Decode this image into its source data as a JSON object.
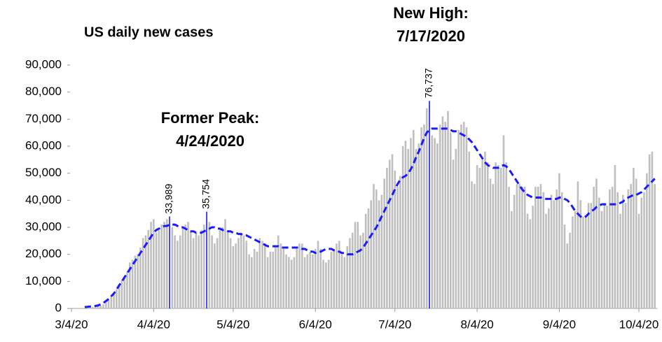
{
  "chart_data": {
    "type": "bar",
    "title": "US daily new cases",
    "annotations": [
      {
        "lines": [
          "Former Peak:",
          "4/24/2020"
        ],
        "color": "#1a1aff"
      },
      {
        "lines": [
          "New High:",
          "7/17/2020"
        ],
        "color": "#1a1aff"
      }
    ],
    "ylim": [
      0,
      90000
    ],
    "yticks": [
      0,
      {
        "value": 10000,
        "label": "10,000"
      },
      {
        "value": 20000,
        "label": "20,000"
      },
      {
        "value": 30000,
        "label": "30,000"
      },
      {
        "value": 40000,
        "label": "40,000"
      },
      {
        "value": 50000,
        "label": "50,000"
      },
      {
        "value": 60000,
        "label": "60,000"
      },
      {
        "value": 70000,
        "label": "70,000"
      },
      {
        "value": 80000,
        "label": "80,000"
      },
      {
        "value": 90000,
        "label": "90,000"
      }
    ],
    "categories": [
      "3/4/20",
      null,
      null,
      null,
      null,
      null,
      null,
      null,
      null,
      null,
      null,
      null,
      null,
      null,
      null,
      null,
      null,
      null,
      null,
      null,
      null,
      null,
      null,
      null,
      null,
      null,
      null,
      null,
      null,
      null,
      null,
      "4/4/20",
      null,
      null,
      null,
      null,
      null,
      null,
      null,
      null,
      null,
      null,
      null,
      null,
      null,
      null,
      null,
      null,
      null,
      null,
      null,
      null,
      null,
      null,
      null,
      null,
      null,
      null,
      null,
      null,
      null,
      "5/4/20",
      null,
      null,
      null,
      null,
      null,
      null,
      null,
      null,
      null,
      null,
      null,
      null,
      null,
      null,
      null,
      null,
      null,
      null,
      null,
      null,
      null,
      null,
      null,
      null,
      null,
      null,
      null,
      null,
      null,
      null,
      "6/4/20",
      null,
      null,
      null,
      null,
      null,
      null,
      null,
      null,
      null,
      null,
      null,
      null,
      null,
      null,
      null,
      null,
      null,
      null,
      null,
      null,
      null,
      null,
      null,
      null,
      null,
      null,
      null,
      null,
      null,
      "7/4/20",
      null,
      null,
      null,
      null,
      null,
      null,
      null,
      null,
      null,
      null,
      null,
      null,
      null,
      null,
      null,
      null,
      null,
      null,
      null,
      null,
      null,
      null,
      null,
      null,
      null,
      null,
      null,
      null,
      null,
      null,
      "8/4/20",
      null,
      null,
      null,
      null,
      null,
      null,
      null,
      null,
      null,
      null,
      null,
      null,
      null,
      null,
      null,
      null,
      null,
      null,
      null,
      null,
      null,
      null,
      null,
      null,
      null,
      null,
      null,
      null,
      null,
      null,
      "9/4/20",
      null,
      null,
      null,
      null,
      null,
      null,
      null,
      null,
      null,
      null,
      null,
      null,
      null,
      null,
      null,
      null,
      null,
      null,
      null,
      null,
      null,
      null,
      null,
      null,
      null,
      null,
      null,
      null,
      null,
      "10/4/20",
      null,
      null,
      null,
      null,
      null,
      null
    ],
    "series": [
      {
        "type": "bar",
        "color": "#bfbfbf",
        "label_color": "#1a1aff",
        "values": [
          40,
          60,
          90,
          150,
          120,
          200,
          290,
          380,
          520,
          660,
          760,
          1050,
          1530,
          2200,
          3200,
          4600,
          5600,
          7000,
          9000,
          10500,
          11500,
          13500,
          17000,
          18000,
          19500,
          20000,
          22500,
          26000,
          27000,
          29000,
          32000,
          33000,
          28000,
          29000,
          31000,
          32000,
          33000,
          33989,
          30000,
          27000,
          25000,
          27000,
          30000,
          31000,
          32000,
          29000,
          26000,
          28000,
          27000,
          29000,
          31000,
          35754,
          32000,
          27000,
          24000,
          26000,
          29000,
          30000,
          33000,
          29000,
          26000,
          23000,
          24000,
          26000,
          28000,
          27000,
          25000,
          20000,
          19000,
          22000,
          21000,
          26000,
          25000,
          24000,
          19000,
          21000,
          21000,
          23000,
          27000,
          24000,
          22000,
          20000,
          19000,
          18000,
          19000,
          22000,
          24000,
          24000,
          19000,
          20000,
          21000,
          20000,
          22000,
          25000,
          22000,
          18000,
          17000,
          18000,
          21000,
          22000,
          24000,
          25000,
          20000,
          19000,
          23000,
          26000,
          28000,
          32000,
          32000,
          27000,
          28000,
          35000,
          37000,
          40000,
          46000,
          44000,
          40000,
          42000,
          48000,
          52000,
          55000,
          57000,
          51000,
          45000,
          49000,
          60000,
          62000,
          59000,
          63000,
          66000,
          59000,
          61000,
          67000,
          68000,
          74000,
          76737,
          64000,
          63000,
          61000,
          68000,
          71000,
          69000,
          73000,
          65000,
          55000,
          59000,
          66000,
          68000,
          69000,
          67000,
          58000,
          47000,
          46000,
          53000,
          52000,
          55000,
          58000,
          54000,
          48000,
          46000,
          54000,
          53000,
          52000,
          64000,
          54000,
          45000,
          36000,
          42000,
          46000,
          46000,
          45000,
          45000,
          35000,
          33000,
          38000,
          45000,
          45000,
          46000,
          43000,
          35000,
          37000,
          42000,
          40000,
          44000,
          50000,
          43000,
          31000,
          24000,
          28000,
          34000,
          36000,
          47000,
          40000,
          34000,
          34000,
          39000,
          39000,
          45000,
          48000,
          41000,
          36000,
          39000,
          38000,
          44000,
          45000,
          53000,
          43000,
          35000,
          42000,
          39000,
          44000,
          46000,
          52000,
          48000,
          35000,
          41000,
          43000,
          50000,
          57000,
          58000,
          46000
        ],
        "value_labels": [
          null,
          null,
          null,
          null,
          null,
          null,
          null,
          null,
          null,
          null,
          null,
          null,
          null,
          null,
          null,
          null,
          null,
          null,
          null,
          null,
          null,
          null,
          null,
          null,
          null,
          null,
          null,
          null,
          null,
          null,
          null,
          null,
          null,
          null,
          null,
          null,
          null,
          "33,989",
          null,
          null,
          null,
          null,
          null,
          null,
          null,
          null,
          null,
          null,
          null,
          null,
          null,
          "35,754",
          null,
          null,
          null,
          null,
          null,
          null,
          null,
          null,
          null,
          null,
          null,
          null,
          null,
          null,
          null,
          null,
          null,
          null,
          null,
          null,
          null,
          null,
          null,
          null,
          null,
          null,
          null,
          null,
          null,
          null,
          null,
          null,
          null,
          null,
          null,
          null,
          null,
          null,
          null,
          null,
          null,
          null,
          null,
          null,
          null,
          null,
          null,
          null,
          null,
          null,
          null,
          null,
          null,
          null,
          null,
          null,
          null,
          null,
          null,
          null,
          null,
          null,
          null,
          null,
          null,
          null,
          null,
          null,
          null,
          null,
          null,
          null,
          null,
          null,
          null,
          null,
          null,
          null,
          null,
          null,
          null,
          null,
          null,
          "76,737",
          null,
          null,
          null,
          null,
          null,
          null,
          null,
          null,
          null,
          null,
          null,
          null,
          null,
          null,
          null,
          null,
          null,
          null,
          null,
          null,
          null,
          null,
          null,
          null,
          null,
          null,
          null,
          null,
          null,
          null,
          null,
          null,
          null,
          null,
          null,
          null,
          null,
          null,
          null,
          null,
          null,
          null,
          null,
          null,
          null,
          null,
          null,
          null,
          null,
          null,
          null,
          null,
          null,
          null,
          null,
          null,
          null,
          null,
          null,
          null,
          null,
          null,
          null,
          null,
          null,
          null,
          null,
          null,
          null,
          null,
          null,
          null,
          null,
          null,
          null,
          null,
          null,
          null,
          null,
          null,
          null,
          null,
          null,
          null,
          null
        ]
      },
      {
        "type": "line",
        "color": "#1a1aff",
        "dashed": true,
        "values": [
          null,
          null,
          null,
          null,
          null,
          500,
          600,
          700,
          800,
          900,
          1100,
          1500,
          2000,
          2700,
          3500,
          4500,
          5500,
          7000,
          8500,
          10000,
          11500,
          13000,
          14500,
          16000,
          17500,
          19000,
          20500,
          22000,
          23500,
          25000,
          26500,
          28000,
          29000,
          29500,
          30000,
          30500,
          30500,
          31000,
          31000,
          31000,
          30500,
          30000,
          30000,
          29500,
          29000,
          28500,
          28500,
          28000,
          28000,
          28000,
          28500,
          29000,
          29500,
          30000,
          30000,
          29500,
          29500,
          29000,
          29000,
          28500,
          28500,
          28000,
          28000,
          27500,
          27500,
          27000,
          27000,
          26500,
          26000,
          25500,
          25000,
          24500,
          24000,
          23500,
          23000,
          23000,
          23000,
          23000,
          23000,
          22500,
          22500,
          22500,
          22500,
          22500,
          22500,
          22500,
          22500,
          22000,
          22000,
          21500,
          21000,
          21000,
          20500,
          21000,
          21000,
          21500,
          22000,
          22000,
          22000,
          21500,
          21000,
          21000,
          20500,
          20500,
          20000,
          20000,
          20000,
          20500,
          21000,
          21500,
          22500,
          24000,
          25500,
          27000,
          28500,
          30000,
          32000,
          34000,
          36000,
          38000,
          40000,
          42000,
          44000,
          46000,
          47500,
          48500,
          49000,
          50000,
          51500,
          53500,
          56000,
          58000,
          60500,
          63000,
          65000,
          66000,
          66500,
          66500,
          66500,
          66500,
          66500,
          66500,
          66500,
          66000,
          65500,
          65500,
          65000,
          64500,
          64000,
          63500,
          62500,
          61500,
          60000,
          58500,
          57000,
          55500,
          54000,
          53000,
          52500,
          52000,
          52000,
          52000,
          52500,
          53000,
          52500,
          51500,
          50000,
          48500,
          47000,
          45500,
          44000,
          43000,
          42000,
          41500,
          41000,
          41000,
          41000,
          41000,
          41000,
          40500,
          40500,
          40500,
          40500,
          40500,
          41000,
          41000,
          40500,
          40000,
          39000,
          37500,
          36000,
          35000,
          34000,
          33500,
          34000,
          35000,
          36000,
          36500,
          37500,
          38000,
          38500,
          38500,
          38500,
          38500,
          38500,
          38500,
          38500,
          39000,
          39500,
          40500,
          41000,
          41500,
          42000,
          42000,
          42500,
          43000,
          44000,
          45000,
          46000,
          47000,
          48000
        ]
      }
    ]
  }
}
